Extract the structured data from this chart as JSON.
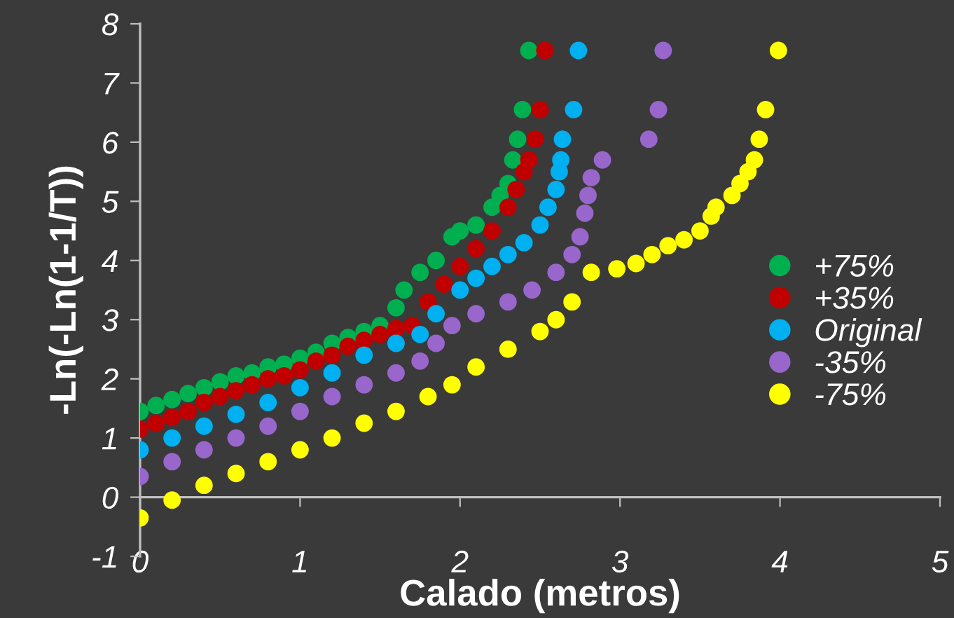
{
  "chart_data": {
    "type": "scatter",
    "xlabel": "Calado (metros)",
    "ylabel": "-Ln(-Ln(1-1/T))",
    "xlim": [
      0,
      5
    ],
    "xticks": [
      0,
      1,
      2,
      3,
      4,
      5
    ],
    "ylim": [
      -1,
      8
    ],
    "yticks": [
      -1,
      0,
      1,
      2,
      3,
      4,
      5,
      6,
      7,
      8
    ],
    "grid": false,
    "legend": "right",
    "marker": "circle",
    "series": [
      {
        "name": "+75%",
        "color": "#00b050",
        "x": [
          0,
          0.1,
          0.2,
          0.3,
          0.4,
          0.5,
          0.6,
          0.7,
          0.8,
          0.9,
          1.0,
          1.1,
          1.2,
          1.3,
          1.4,
          1.5,
          1.6,
          1.65,
          1.75,
          1.85,
          1.95,
          2.0,
          2.1,
          2.2,
          2.25,
          2.3,
          2.33,
          2.36,
          2.39,
          2.43
        ],
        "values": [
          1.45,
          1.55,
          1.65,
          1.75,
          1.85,
          1.95,
          2.05,
          2.1,
          2.2,
          2.25,
          2.35,
          2.45,
          2.6,
          2.7,
          2.8,
          2.9,
          3.2,
          3.5,
          3.8,
          4.0,
          4.4,
          4.5,
          4.6,
          4.9,
          5.1,
          5.3,
          5.7,
          6.05,
          6.55,
          7.55
        ]
      },
      {
        "name": "+35%",
        "color": "#c00000",
        "x": [
          0,
          0.1,
          0.2,
          0.3,
          0.4,
          0.5,
          0.6,
          0.7,
          0.8,
          0.9,
          1.0,
          1.1,
          1.2,
          1.3,
          1.4,
          1.5,
          1.6,
          1.7,
          1.8,
          1.9,
          2.0,
          2.1,
          2.2,
          2.3,
          2.35,
          2.4,
          2.43,
          2.47,
          2.5,
          2.53
        ],
        "values": [
          1.15,
          1.25,
          1.35,
          1.45,
          1.6,
          1.7,
          1.8,
          1.9,
          2.0,
          2.05,
          2.15,
          2.3,
          2.4,
          2.55,
          2.65,
          2.75,
          2.85,
          2.9,
          3.3,
          3.6,
          3.9,
          4.2,
          4.5,
          4.9,
          5.2,
          5.5,
          5.7,
          6.05,
          6.55,
          7.55
        ]
      },
      {
        "name": "Original",
        "color": "#00b0f0",
        "x": [
          0,
          0.2,
          0.4,
          0.6,
          0.8,
          1.0,
          1.2,
          1.4,
          1.6,
          1.75,
          1.85,
          2.0,
          2.1,
          2.2,
          2.3,
          2.4,
          2.5,
          2.55,
          2.6,
          2.62,
          2.63,
          2.64,
          2.71,
          2.74
        ],
        "values": [
          0.8,
          1.0,
          1.2,
          1.4,
          1.6,
          1.85,
          2.1,
          2.4,
          2.6,
          2.75,
          3.1,
          3.5,
          3.7,
          3.9,
          4.1,
          4.3,
          4.6,
          4.9,
          5.2,
          5.5,
          5.7,
          6.05,
          6.55,
          7.55
        ]
      },
      {
        "name": "-35%",
        "color": "#9966cc",
        "x": [
          0,
          0.2,
          0.4,
          0.6,
          0.8,
          1.0,
          1.2,
          1.4,
          1.6,
          1.75,
          1.85,
          1.95,
          2.1,
          2.3,
          2.45,
          2.6,
          2.7,
          2.75,
          2.78,
          2.8,
          2.82,
          2.89,
          3.18,
          3.24,
          3.27
        ],
        "values": [
          0.35,
          0.6,
          0.8,
          1.0,
          1.2,
          1.45,
          1.7,
          1.9,
          2.1,
          2.3,
          2.6,
          2.9,
          3.1,
          3.3,
          3.5,
          3.8,
          4.1,
          4.4,
          4.8,
          5.1,
          5.4,
          5.7,
          6.05,
          6.55,
          7.55
        ]
      },
      {
        "name": "-75%",
        "color": "#ffff00",
        "x": [
          0,
          0.2,
          0.4,
          0.6,
          0.8,
          1.0,
          1.2,
          1.4,
          1.6,
          1.8,
          1.95,
          2.1,
          2.3,
          2.5,
          2.6,
          2.7,
          2.82,
          2.98,
          3.1,
          3.2,
          3.3,
          3.4,
          3.5,
          3.57,
          3.6,
          3.7,
          3.75,
          3.8,
          3.84,
          3.87,
          3.91,
          3.99
        ],
        "values": [
          -0.35,
          -0.05,
          0.2,
          0.4,
          0.6,
          0.8,
          1.0,
          1.25,
          1.45,
          1.7,
          1.9,
          2.2,
          2.5,
          2.8,
          3.0,
          3.3,
          3.8,
          3.86,
          3.95,
          4.1,
          4.25,
          4.35,
          4.5,
          4.75,
          4.9,
          5.1,
          5.3,
          5.5,
          5.7,
          6.05,
          6.55,
          7.55
        ]
      }
    ]
  }
}
